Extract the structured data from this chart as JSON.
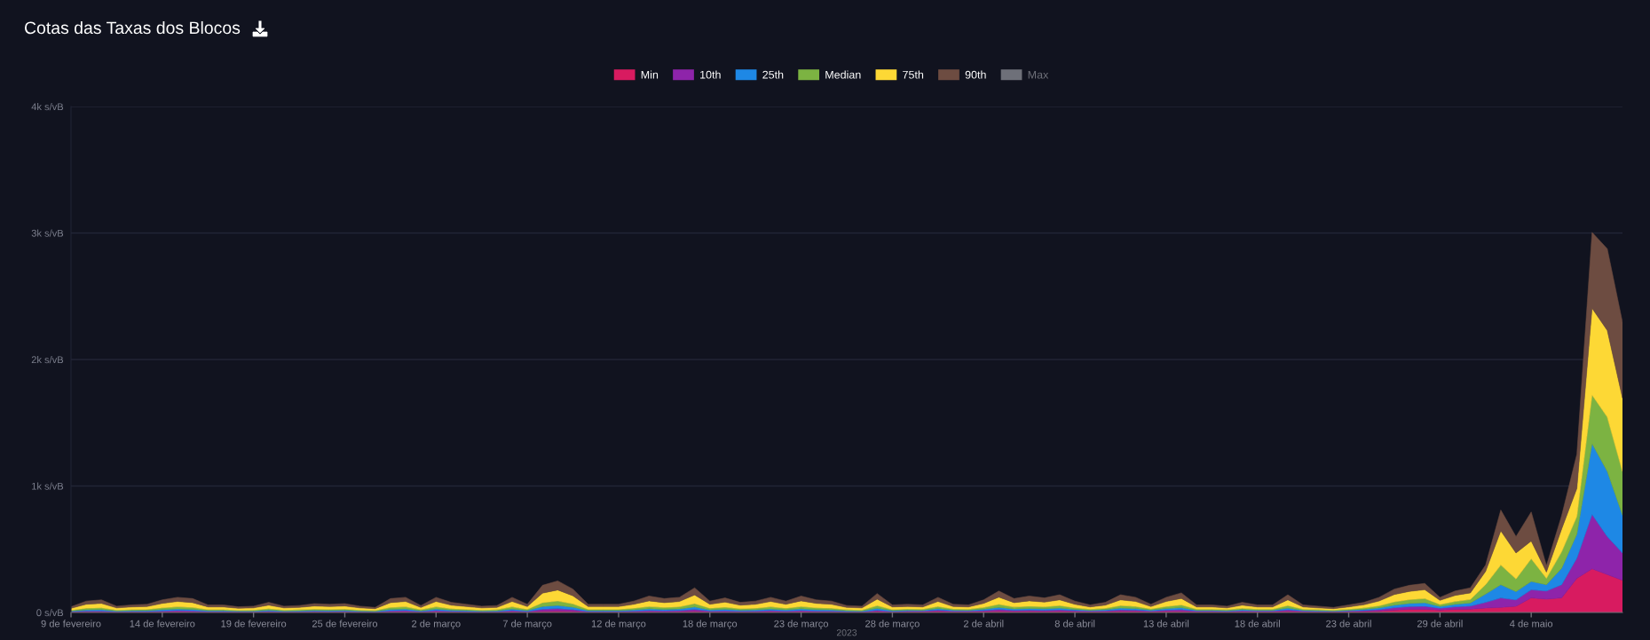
{
  "chart_data": {
    "type": "area",
    "title": "Cotas das Taxas dos Blocos",
    "xlabel": "2023",
    "categories": [
      "9 de fevereiro",
      null,
      null,
      null,
      null,
      null,
      "14 de fevereiro",
      null,
      null,
      null,
      null,
      null,
      "19 de fevereiro",
      null,
      null,
      null,
      null,
      null,
      "25 de fevereiro",
      null,
      null,
      null,
      null,
      null,
      "2 de março",
      null,
      null,
      null,
      null,
      null,
      "7 de março",
      null,
      null,
      null,
      null,
      null,
      "12 de março",
      null,
      null,
      null,
      null,
      null,
      "18 de março",
      null,
      null,
      null,
      null,
      null,
      "23 de março",
      null,
      null,
      null,
      null,
      null,
      "28 de março",
      null,
      null,
      null,
      null,
      null,
      "2 de abril",
      null,
      null,
      null,
      null,
      null,
      "8 de abril",
      null,
      null,
      null,
      null,
      null,
      "13 de abril",
      null,
      null,
      null,
      null,
      null,
      "18 de abril",
      null,
      null,
      null,
      null,
      null,
      "23 de abril",
      null,
      null,
      null,
      null,
      null,
      "29 de abril",
      null,
      null,
      null,
      null,
      null,
      "4 de maio",
      null,
      null,
      null,
      null,
      null,
      null
    ],
    "series": [
      {
        "name": "Min",
        "color": "#d81b60",
        "values": [
          3,
          5,
          6,
          3,
          4,
          4,
          6,
          7,
          6,
          4,
          4,
          3,
          3,
          5,
          3,
          4,
          5,
          4,
          5,
          3,
          3,
          6,
          7,
          4,
          7,
          5,
          4,
          3,
          4,
          7,
          4,
          11,
          13,
          10,
          4,
          4,
          4,
          5,
          7,
          6,
          7,
          10,
          5,
          6,
          5,
          5,
          7,
          5,
          7,
          6,
          5,
          4,
          3,
          8,
          4,
          7,
          7,
          10,
          7,
          7,
          9,
          12,
          9,
          10,
          9,
          11,
          8,
          7,
          8,
          11,
          10,
          7,
          10,
          11,
          7,
          7,
          6,
          8,
          7,
          7,
          11,
          7,
          6,
          6,
          7,
          8,
          12,
          20,
          25,
          25,
          20,
          25,
          26,
          35,
          40,
          50,
          115,
          105,
          115,
          270,
          345,
          300,
          255
        ]
      },
      {
        "name": "10th",
        "color": "#8e24aa",
        "values": [
          4,
          7,
          7,
          4,
          5,
          5,
          7,
          9,
          8,
          5,
          5,
          4,
          4,
          6,
          4,
          4,
          5,
          5,
          5,
          4,
          3,
          8,
          9,
          4,
          9,
          6,
          5,
          4,
          4,
          9,
          5,
          15,
          18,
          13,
          5,
          5,
          5,
          7,
          9,
          8,
          9,
          14,
          7,
          8,
          6,
          7,
          9,
          7,
          9,
          7,
          7,
          4,
          4,
          10,
          5,
          5,
          5,
          9,
          5,
          5,
          7,
          12,
          8,
          9,
          8,
          10,
          7,
          5,
          6,
          10,
          9,
          5,
          9,
          11,
          5,
          5,
          4,
          6,
          5,
          5,
          10,
          5,
          4,
          3,
          5,
          8,
          11,
          18,
          22,
          25,
          14,
          20,
          25,
          45,
          75,
          50,
          65,
          65,
          105,
          160,
          430,
          300,
          215
        ]
      },
      {
        "name": "25th",
        "color": "#1e88e5",
        "values": [
          5,
          9,
          10,
          5,
          6,
          7,
          10,
          12,
          11,
          6,
          6,
          5,
          5,
          8,
          5,
          6,
          7,
          7,
          7,
          5,
          4,
          11,
          12,
          6,
          12,
          8,
          7,
          5,
          6,
          12,
          7,
          22,
          25,
          19,
          7,
          7,
          7,
          9,
          13,
          11,
          12,
          20,
          9,
          12,
          8,
          9,
          12,
          9,
          13,
          10,
          9,
          6,
          5,
          15,
          6,
          7,
          6,
          12,
          7,
          6,
          10,
          17,
          11,
          13,
          12,
          14,
          9,
          6,
          8,
          14,
          12,
          7,
          12,
          16,
          6,
          6,
          5,
          8,
          6,
          6,
          14,
          6,
          5,
          4,
          6,
          9,
          13,
          20,
          25,
          27,
          14,
          20,
          25,
          65,
          105,
          65,
          65,
          50,
          130,
          190,
          560,
          515,
          300
        ]
      },
      {
        "name": "Median",
        "color": "#7cb342",
        "values": [
          6,
          13,
          14,
          7,
          8,
          9,
          14,
          17,
          15,
          8,
          8,
          6,
          7,
          11,
          7,
          8,
          10,
          9,
          10,
          7,
          6,
          15,
          17,
          8,
          17,
          11,
          9,
          7,
          8,
          17,
          9,
          30,
          35,
          26,
          9,
          9,
          9,
          13,
          18,
          15,
          17,
          27,
          13,
          16,
          11,
          13,
          17,
          13,
          18,
          14,
          13,
          8,
          7,
          21,
          8,
          9,
          8,
          17,
          9,
          8,
          14,
          24,
          15,
          18,
          16,
          20,
          13,
          8,
          11,
          20,
          17,
          9,
          17,
          22,
          8,
          8,
          7,
          11,
          8,
          8,
          20,
          8,
          7,
          6,
          8,
          11,
          17,
          26,
          30,
          33,
          16,
          22,
          27,
          75,
          155,
          100,
          180,
          50,
          130,
          140,
          385,
          430,
          345
        ]
      },
      {
        "name": "75th",
        "color": "#fdd835",
        "values": [
          15,
          31,
          35,
          17,
          21,
          22,
          35,
          42,
          38,
          21,
          21,
          15,
          17,
          28,
          17,
          18,
          24,
          22,
          24,
          17,
          14,
          38,
          42,
          18,
          42,
          28,
          22,
          17,
          18,
          42,
          22,
          75,
          87,
          64,
          22,
          22,
          22,
          31,
          45,
          38,
          42,
          68,
          31,
          40,
          28,
          31,
          42,
          31,
          45,
          35,
          31,
          18,
          17,
          52,
          21,
          19,
          18,
          39,
          19,
          18,
          32,
          56,
          35,
          42,
          37,
          45,
          28,
          18,
          25,
          45,
          39,
          19,
          39,
          51,
          18,
          18,
          14,
          25,
          18,
          18,
          45,
          18,
          14,
          11,
          18,
          25,
          38,
          58,
          65,
          70,
          32,
          48,
          52,
          105,
          270,
          205,
          140,
          50,
          180,
          220,
          685,
          685,
          580
        ]
      },
      {
        "name": "90th",
        "color": "#6d4c41",
        "values": [
          12,
          25,
          28,
          14,
          16,
          18,
          28,
          33,
          32,
          16,
          16,
          12,
          14,
          22,
          14,
          15,
          19,
          18,
          19,
          14,
          10,
          32,
          33,
          15,
          33,
          22,
          18,
          14,
          15,
          33,
          18,
          62,
          72,
          53,
          18,
          18,
          18,
          25,
          38,
          32,
          33,
          56,
          25,
          33,
          22,
          25,
          33,
          25,
          38,
          28,
          25,
          15,
          14,
          44,
          16,
          18,
          16,
          33,
          18,
          16,
          28,
          49,
          32,
          38,
          33,
          40,
          25,
          16,
          22,
          40,
          33,
          18,
          33,
          44,
          16,
          16,
          14,
          22,
          16,
          16,
          40,
          16,
          14,
          10,
          16,
          19,
          29,
          43,
          48,
          50,
          24,
          35,
          40,
          50,
          165,
          130,
          230,
          50,
          105,
          270,
          600,
          645,
          600
        ]
      },
      {
        "name": "Max",
        "color": "#6e7079",
        "values": [
          null,
          null,
          null,
          null,
          null,
          null,
          null,
          null,
          null,
          null,
          null,
          null,
          null,
          null,
          null,
          null,
          null,
          null,
          null,
          null,
          null,
          null,
          null,
          null,
          null,
          null,
          null,
          null,
          null,
          null,
          null,
          null,
          null,
          null,
          null,
          null,
          null,
          null,
          null,
          null,
          null,
          null,
          null,
          null,
          null,
          null,
          null,
          null,
          null,
          null,
          null,
          null,
          null,
          null,
          null,
          null,
          null,
          null,
          null,
          null,
          null,
          null,
          null,
          null,
          null,
          null,
          null,
          null,
          null,
          null,
          null,
          null,
          null,
          null,
          null,
          null,
          null,
          null,
          null,
          null,
          null,
          null,
          null,
          null,
          null,
          null,
          null,
          null,
          null,
          null,
          null,
          null,
          null,
          null,
          null,
          null,
          null,
          null,
          null,
          null,
          null,
          null,
          null
        ]
      }
    ],
    "stacked": true,
    "ylim": [
      0,
      4000
    ],
    "yticks": [
      {
        "value": 0,
        "label": "0 s/vB"
      },
      {
        "value": 1000,
        "label": "1k s/vB"
      },
      {
        "value": 2000,
        "label": "2k s/vB"
      },
      {
        "value": 3000,
        "label": "3k s/vB"
      },
      {
        "value": 4000,
        "label": "4k s/vB"
      }
    ],
    "grid": "y",
    "legend": "top"
  }
}
